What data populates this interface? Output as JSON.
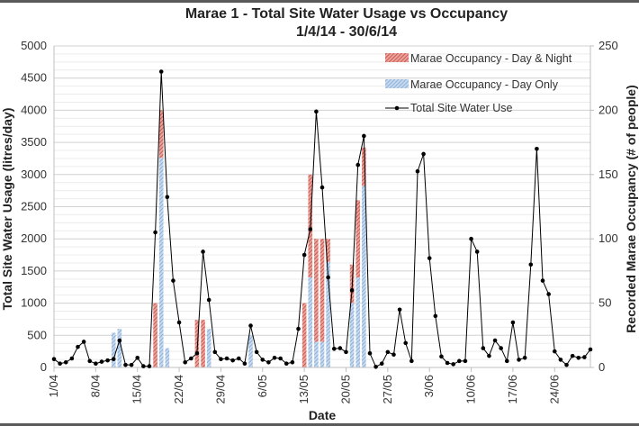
{
  "chart_data": {
    "type": "bar+line",
    "title": "Marae 1 - Total Site Water Usage vs Occupancy",
    "subtitle": "1/4/14 - 30/6/14",
    "xlabel": "Date",
    "ylabel": "Total Site Water Usage (litres/day)",
    "y2label": "Recorded Marae Occupancy (# of people)",
    "ylim": [
      0,
      5000
    ],
    "y2lim": [
      0,
      250
    ],
    "yticks": [
      "0",
      "500",
      "1000",
      "1500",
      "2000",
      "2500",
      "3000",
      "3500",
      "4000",
      "4500",
      "5000"
    ],
    "y2ticks": [
      "0",
      "50",
      "100",
      "150",
      "200",
      "250"
    ],
    "xticks": [
      "1/04",
      "8/04",
      "15/04",
      "22/04",
      "29/04",
      "6/05",
      "13/05",
      "20/05",
      "27/05",
      "3/06",
      "10/06",
      "17/06",
      "24/06"
    ],
    "xtick_day_index": [
      0,
      7,
      14,
      21,
      28,
      35,
      42,
      49,
      56,
      63,
      70,
      77,
      84
    ],
    "grid": true,
    "legend_position": "top-right",
    "legend": [
      {
        "name": "Marae Occupancy - Day & Night",
        "type": "bar",
        "color": "#d9534a",
        "pattern": "hatched"
      },
      {
        "name": "Marae Occupancy - Day Only",
        "type": "bar",
        "color": "#7fa7d4",
        "pattern": "hatched"
      },
      {
        "name": "Total Site Water Use",
        "type": "line",
        "color": "#000000",
        "marker": "circle"
      }
    ],
    "days": 91,
    "series": [
      {
        "name": "Total Site Water Use",
        "axis": "left",
        "values": [
          130,
          60,
          80,
          140,
          320,
          400,
          100,
          60,
          90,
          110,
          130,
          420,
          40,
          40,
          150,
          20,
          20,
          2100,
          4600,
          2650,
          1350,
          700,
          80,
          140,
          220,
          1800,
          1050,
          240,
          130,
          140,
          110,
          140,
          60,
          650,
          240,
          120,
          80,
          150,
          140,
          60,
          80,
          600,
          1750,
          2150,
          3980,
          2800,
          1400,
          290,
          300,
          240,
          1200,
          3150,
          3600,
          220,
          10,
          60,
          240,
          200,
          900,
          380,
          100,
          3050,
          3320,
          1700,
          800,
          170,
          70,
          50,
          100,
          100,
          2000,
          1800,
          300,
          180,
          420,
          300,
          100,
          700,
          120,
          150,
          1600,
          3400,
          1350,
          1140,
          250,
          120,
          40,
          180,
          150,
          160,
          280
        ]
      },
      {
        "name": "Marae Occupancy - Day Only",
        "axis": "right",
        "values": [
          0,
          0,
          0,
          0,
          0,
          0,
          0,
          0,
          0,
          0,
          27,
          30,
          0,
          0,
          0,
          0,
          0,
          0,
          163,
          15,
          0,
          0,
          0,
          0,
          0,
          0,
          30,
          0,
          0,
          0,
          0,
          0,
          0,
          25,
          0,
          0,
          0,
          0,
          0,
          0,
          0,
          0,
          0,
          70,
          20,
          20,
          82,
          0,
          0,
          0,
          50,
          70,
          141,
          0,
          0,
          0,
          0,
          0,
          0,
          0,
          0,
          0,
          0,
          0,
          0,
          0,
          0,
          0,
          0,
          0,
          0,
          0,
          0,
          0,
          0,
          0,
          0,
          0,
          0,
          0,
          0,
          0,
          0,
          0,
          0,
          0,
          0,
          0,
          0,
          0,
          0
        ]
      },
      {
        "name": "Marae Occupancy - Day & Night",
        "axis": "right",
        "values": [
          0,
          0,
          0,
          0,
          0,
          0,
          0,
          0,
          0,
          0,
          0,
          0,
          0,
          0,
          0,
          0,
          0,
          50,
          37,
          0,
          0,
          0,
          0,
          0,
          37,
          37,
          0,
          0,
          0,
          0,
          0,
          0,
          0,
          0,
          0,
          0,
          0,
          0,
          0,
          0,
          0,
          0,
          50,
          80,
          80,
          80,
          18,
          0,
          0,
          0,
          30,
          60,
          30,
          0,
          0,
          0,
          0,
          0,
          0,
          0,
          0,
          0,
          0,
          0,
          0,
          0,
          0,
          0,
          0,
          0,
          0,
          0,
          0,
          0,
          0,
          0,
          0,
          0,
          0,
          0,
          0,
          0,
          0,
          0,
          0,
          0,
          0,
          0,
          0,
          0,
          0
        ]
      }
    ]
  }
}
